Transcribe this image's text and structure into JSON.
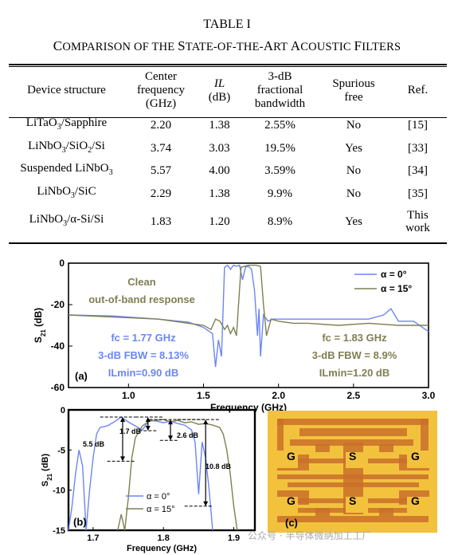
{
  "table": {
    "title": "TABLE I",
    "caption": [
      {
        "text": "C",
        "big": true
      },
      {
        "text": "OMPARISON OF THE ",
        "big": false
      },
      {
        "text": "S",
        "big": true
      },
      {
        "text": "TATE-OF-THE-",
        "big": false
      },
      {
        "text": "A",
        "big": true
      },
      {
        "text": "RT ",
        "big": false
      },
      {
        "text": "A",
        "big": true
      },
      {
        "text": "COUSTIC ",
        "big": false
      },
      {
        "text": "F",
        "big": true
      },
      {
        "text": "ILTERS",
        "big": false
      }
    ],
    "headers": [
      [
        "Device structure"
      ],
      [
        "Center",
        "frequency",
        "(GHz)"
      ],
      [
        "IL",
        "(dB)"
      ],
      [
        "3-dB",
        "fractional",
        "bandwidth"
      ],
      [
        "Spurious",
        "free"
      ],
      [
        "Ref."
      ]
    ],
    "rows": [
      {
        "device": "LiTaO3/Sapphire",
        "freq": "2.20",
        "il": "1.38",
        "fbw": "2.55%",
        "spurious": "No",
        "ref": [
          "[15]"
        ]
      },
      {
        "device": "LiNbO3/SiO2/Si",
        "freq": "3.74",
        "il": "3.03",
        "fbw": "19.5%",
        "spurious": "Yes",
        "ref": [
          "[33]"
        ]
      },
      {
        "device": "Suspended LiNbO3",
        "freq": "5.57",
        "il": "4.00",
        "fbw": "3.59%",
        "spurious": "No",
        "ref": [
          "[34]"
        ]
      },
      {
        "device": "LiNbO3/SiC",
        "freq": "2.29",
        "il": "1.38",
        "fbw": "9.9%",
        "spurious": "No",
        "ref": [
          "[35]"
        ]
      },
      {
        "device": "LiNbO3/α-Si/Si",
        "freq": "1.83",
        "il": "1.20",
        "fbw": "8.9%",
        "spurious": "Yes",
        "ref": [
          "This",
          "work"
        ]
      }
    ]
  },
  "colors": {
    "blue": "#6b86f5",
    "olive": "#7f7f52",
    "photo_bg": "#f3c23d",
    "photo_metal": "#c9702a"
  },
  "plot_a": {
    "panel_label": "(a)",
    "xlabel": "Frequency (GHz)",
    "ylabel": "S21 (dB)",
    "xticks": [
      "1.0",
      "1.5",
      "2.0",
      "2.5",
      "3.0"
    ],
    "yticks": [
      "0",
      "-20",
      "-40",
      "-60"
    ],
    "clean_label": [
      "Clean",
      "out-of-band response"
    ],
    "blue_ann": [
      "fc = 1.77 GHz",
      "3-dB FBW = 8.13%",
      "ILmin=0.90 dB"
    ],
    "olive_ann": [
      "fc = 1.83 GHz",
      "3-dB FBW = 8.9%",
      "ILmin=1.20 dB"
    ],
    "legend": [
      "α = 0°",
      "α = 15°"
    ]
  },
  "plot_b": {
    "panel_label": "(b)",
    "xlabel": "Frequency (GHz)",
    "ylabel": "S21 (dB)",
    "xticks": [
      "1.7",
      "1.8",
      "1.9"
    ],
    "yticks": [
      "0",
      "-5",
      "-10",
      "-15"
    ],
    "dims": [
      "1.7 dB",
      "2.6 dB",
      "5.5 dB",
      "10.8 dB"
    ],
    "legend": [
      "α = 0°",
      "α = 15°"
    ]
  },
  "photo": {
    "panel_label": "(c)",
    "g": "G",
    "s": "S"
  },
  "watermark": "公众号 · 半导体微纳加工工厂",
  "chart_data": [
    {
      "type": "line",
      "xlabel": "Frequency (GHz)",
      "ylabel": "S21 (dB)",
      "xlim": [
        0.6,
        3.0
      ],
      "ylim": [
        -60,
        0
      ],
      "series": [
        {
          "name": "α = 0°",
          "color": "#6b86f5",
          "x": [
            0.6,
            0.9,
            1.2,
            1.4,
            1.5,
            1.56,
            1.58,
            1.6,
            1.62,
            1.64,
            1.66,
            1.68,
            1.7,
            1.72,
            1.74,
            1.76,
            1.78,
            1.8,
            1.82,
            1.84,
            1.86,
            1.87,
            1.88,
            1.9,
            1.93,
            1.96,
            2.0,
            2.2,
            2.4,
            2.6,
            2.7,
            2.75,
            2.8,
            2.9,
            3.0
          ],
          "y": [
            -25,
            -25.5,
            -27,
            -28.5,
            -31,
            -34,
            -50,
            -37,
            -45,
            -2,
            -1,
            -3,
            -1,
            -1.5,
            -1,
            -8,
            -2,
            -1.5,
            -3,
            -13,
            -35,
            -22,
            -45,
            -25,
            -28,
            -27,
            -27,
            -27,
            -27,
            -27,
            -25,
            -22,
            -28,
            -28,
            -33
          ]
        },
        {
          "name": "α = 15°",
          "color": "#7f7f52",
          "x": [
            0.6,
            0.9,
            1.2,
            1.4,
            1.5,
            1.55,
            1.58,
            1.61,
            1.64,
            1.66,
            1.68,
            1.7,
            1.72,
            1.75,
            1.8,
            1.85,
            1.88,
            1.9,
            1.92,
            1.95,
            2.0,
            2.1,
            2.2,
            2.4,
            2.6,
            2.8,
            3.0
          ],
          "y": [
            -25,
            -26,
            -27,
            -29,
            -30,
            -32,
            -27,
            -28,
            -32,
            -30,
            -34,
            -31,
            -35,
            -2,
            -1,
            -1,
            -1.5,
            -20,
            -35,
            -27,
            -28,
            -29,
            -29,
            -30,
            -29,
            -30,
            -30
          ]
        }
      ]
    },
    {
      "type": "line",
      "xlabel": "Frequency (GHz)",
      "ylabel": "S21 (dB)",
      "xlim": [
        1.665,
        1.93
      ],
      "ylim": [
        -15,
        0
      ],
      "series": [
        {
          "name": "α = 0°",
          "color": "#6b86f5",
          "x": [
            1.665,
            1.67,
            1.675,
            1.68,
            1.685,
            1.69,
            1.695,
            1.7,
            1.705,
            1.71,
            1.72,
            1.73,
            1.74,
            1.745,
            1.75,
            1.76,
            1.77,
            1.78,
            1.79,
            1.8,
            1.81,
            1.82,
            1.83,
            1.84,
            1.845,
            1.85,
            1.855,
            1.86,
            1.865,
            1.87
          ],
          "y": [
            -15,
            -12,
            -8,
            -5,
            -7,
            -15,
            -10,
            -6,
            -3,
            -2.2,
            -2,
            -1.5,
            -0.9,
            -1.2,
            -1.5,
            -2,
            -2.5,
            -1.3,
            -1.4,
            -1.6,
            -1.4,
            -1.7,
            -1.9,
            -2.5,
            -4,
            -10.5,
            -4,
            -6,
            -10,
            -15
          ]
        },
        {
          "name": "α = 15°",
          "color": "#7f7f52",
          "x": [
            1.735,
            1.74,
            1.745,
            1.75,
            1.755,
            1.76,
            1.77,
            1.78,
            1.79,
            1.8,
            1.81,
            1.82,
            1.83,
            1.84,
            1.85,
            1.86,
            1.87,
            1.88,
            1.885,
            1.89,
            1.895,
            1.9,
            1.905
          ],
          "y": [
            -15,
            -13,
            -15,
            -11,
            -6,
            -3.5,
            -2,
            -1.4,
            -1.3,
            -1.2,
            -1.5,
            -1.3,
            -1.6,
            -1.5,
            -1.8,
            -1.7,
            -1.9,
            -2.2,
            -3,
            -5,
            -8,
            -12,
            -15
          ]
        }
      ]
    }
  ]
}
